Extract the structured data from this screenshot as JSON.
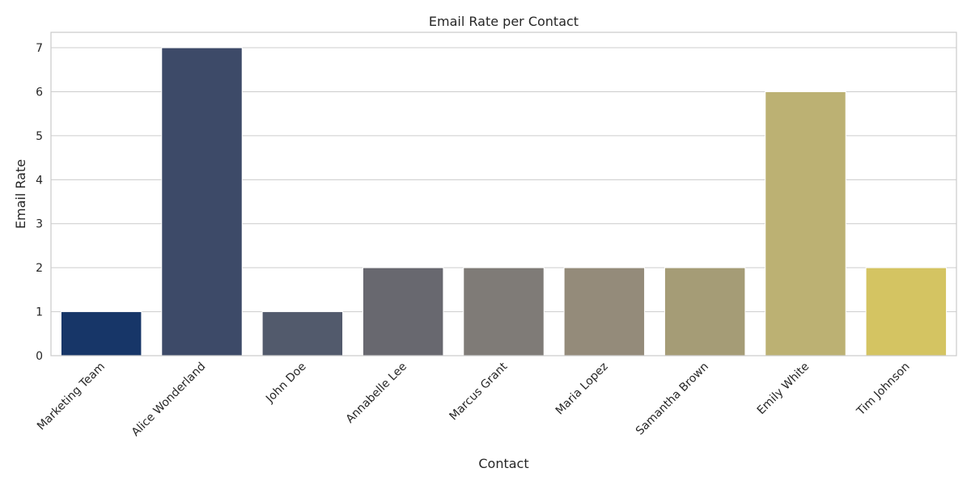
{
  "chart_data": {
    "type": "bar",
    "title": "Email Rate per Contact",
    "xlabel": "Contact",
    "ylabel": "Email Rate",
    "categories": [
      "Marketing Team",
      "Alice Wonderland",
      "John Doe",
      "Annabelle Lee",
      "Marcus Grant",
      "Maria Lopez",
      "Samantha Brown",
      "Emily White",
      "Tim Johnson"
    ],
    "values": [
      1,
      7,
      1,
      2,
      2,
      2,
      2,
      6,
      2
    ],
    "colors": [
      "#173668",
      "#3d4a68",
      "#525a6c",
      "#68686f",
      "#7f7b77",
      "#948b7a",
      "#a59c76",
      "#bcb173",
      "#d4c462"
    ],
    "yticks": [
      0,
      1,
      2,
      3,
      4,
      5,
      6,
      7
    ],
    "ylim": [
      0,
      7.35
    ],
    "grid": true,
    "legend": "none"
  }
}
